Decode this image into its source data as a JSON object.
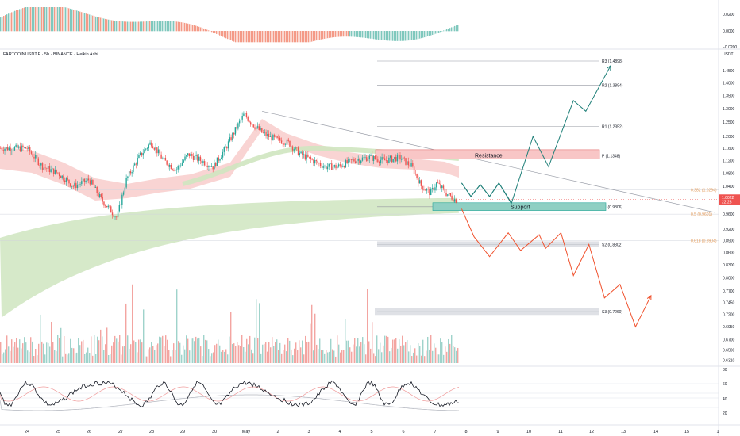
{
  "header": {
    "symbol_line": "FARTCOINUSDT.P · 5h · BINANCE · Heikin Ashi"
  },
  "top_axis": {
    "ticks": [
      "0.0200",
      "0.0000",
      "−0.0200"
    ]
  },
  "price_axis": {
    "currency": "USDT",
    "ticks": [
      "1.4500",
      "1.4000",
      "1.3500",
      "1.3000",
      "1.2500",
      "1.2000",
      "1.1600",
      "1.1200",
      "1.0800",
      "1.0400",
      "1.0000",
      "0.9600",
      "0.9200",
      "0.8900",
      "0.8600",
      "0.8300",
      "0.8000",
      "0.7700",
      "0.7450",
      "0.7200",
      "0.6950",
      "0.6700",
      "0.6500",
      "0.6310"
    ],
    "last_price": "1.0022",
    "last_time": "22:23"
  },
  "rsi_axis": {
    "ticks": [
      "80",
      "60",
      "40",
      "20"
    ]
  },
  "time_axis": {
    "ticks": [
      "24",
      "25",
      "26",
      "27",
      "28",
      "29",
      "30",
      "May",
      "2",
      "3",
      "4",
      "5",
      "6",
      "7",
      "8",
      "9",
      "10",
      "11",
      "12",
      "13",
      "14",
      "15",
      "1"
    ]
  },
  "levels": [
    {
      "key": "r3",
      "label": "R3 (1.4898)"
    },
    {
      "key": "r2",
      "label": "R2 (1.3894)"
    },
    {
      "key": "r1",
      "label": "R1 (1.2352)"
    },
    {
      "key": "p",
      "label": "P (1.1348)"
    },
    {
      "key": "s1",
      "label": "S1 (0.9806)"
    },
    {
      "key": "s2",
      "label": "S2 (0.8802)"
    },
    {
      "key": "s3",
      "label": "S3 (0.7260)"
    }
  ],
  "fib_levels": [
    {
      "label": "0.382 (1.0294)"
    },
    {
      "label": "0.5 (0.9601)"
    },
    {
      "label": "0.618 (0.8904)"
    }
  ],
  "zones": {
    "resistance": "Resistance",
    "support": "Support"
  },
  "colors": {
    "up": "#26a69a",
    "down": "#ef5350",
    "resistance_fill": "#f8c6c6",
    "support_fill": "#8fcfc3",
    "bull_path": "#1e7f78",
    "bear_path": "#f0522e",
    "trendline": "#9a9ea8"
  },
  "chart_data": {
    "type": "candlestick",
    "title": "FARTCOINUSDT.P · 5h · BINANCE · Heikin Ashi",
    "ylabel": "USDT",
    "ylim": [
      0.62,
      1.52
    ],
    "scale": "log",
    "last_price": 1.0022,
    "close_path": [
      [
        24,
        1.16
      ],
      [
        24.5,
        1.1
      ],
      [
        25,
        1.08
      ],
      [
        25.5,
        1.04
      ],
      [
        26,
        1.06
      ],
      [
        26.4,
        1.0
      ],
      [
        26.9,
        0.95
      ],
      [
        27.2,
        1.06
      ],
      [
        27.6,
        1.13
      ],
      [
        28,
        1.18
      ],
      [
        28.4,
        1.12
      ],
      [
        28.8,
        1.09
      ],
      [
        29.2,
        1.14
      ],
      [
        29.6,
        1.12
      ],
      [
        30,
        1.1
      ],
      [
        30.4,
        1.16
      ],
      [
        30.8,
        1.24
      ],
      [
        31.0,
        1.28
      ],
      [
        31.2,
        1.25
      ],
      [
        31.6,
        1.21
      ],
      [
        32.0,
        1.19
      ],
      [
        32.4,
        1.18
      ],
      [
        32.8,
        1.14
      ],
      [
        33.2,
        1.12
      ],
      [
        33.6,
        1.1
      ],
      [
        34.0,
        1.1
      ],
      [
        34.5,
        1.12
      ],
      [
        35,
        1.13
      ],
      [
        35.5,
        1.12
      ],
      [
        36,
        1.13
      ],
      [
        36.4,
        1.1
      ],
      [
        36.7,
        1.04
      ],
      [
        37.0,
        1.02
      ],
      [
        37.2,
        1.05
      ],
      [
        37.5,
        1.02
      ],
      [
        37.8,
        1.0
      ]
    ],
    "pivots": {
      "R3": 1.4898,
      "R2": 1.3894,
      "R1": 1.2352,
      "P": 1.1348,
      "S1": 0.9806,
      "S2": 0.8802,
      "S3": 0.726
    },
    "fibs": {
      "0.382": 1.0294,
      "0.5": 0.9601,
      "0.618": 0.8904
    },
    "bullish_projection": [
      [
        38.0,
        1.05
      ],
      [
        38.3,
        1.01
      ],
      [
        38.6,
        1.045
      ],
      [
        38.9,
        1.01
      ],
      [
        39.2,
        1.05
      ],
      [
        39.6,
        0.99
      ],
      [
        40.3,
        1.2
      ],
      [
        40.8,
        1.1
      ],
      [
        41.6,
        1.33
      ],
      [
        42.0,
        1.29
      ],
      [
        42.8,
        1.47
      ]
    ],
    "bearish_projection": [
      [
        38.0,
        0.975
      ],
      [
        38.4,
        0.9
      ],
      [
        38.9,
        0.85
      ],
      [
        39.5,
        0.91
      ],
      [
        39.9,
        0.865
      ],
      [
        40.5,
        0.905
      ],
      [
        40.7,
        0.87
      ],
      [
        41.2,
        0.91
      ],
      [
        41.6,
        0.805
      ],
      [
        42.1,
        0.88
      ],
      [
        42.6,
        0.755
      ],
      [
        43.1,
        0.785
      ],
      [
        43.6,
        0.695
      ],
      [
        44.1,
        0.76
      ]
    ],
    "rsi_range": [
      10,
      90
    ],
    "rsi_last": 40
  }
}
